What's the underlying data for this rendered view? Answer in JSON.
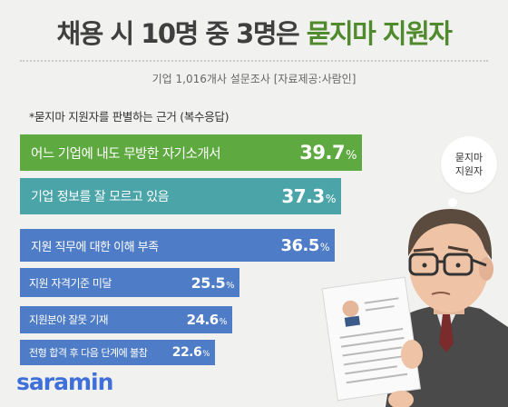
{
  "header": {
    "title_prefix": "채용 시 10명 중 3명은",
    "title_highlight": "묻지마 지원자",
    "subtitle": "기업 1,016개사 설문조사  [자료제공:사람인]"
  },
  "note": "*묻지마 지원자를 판별하는 근거 (복수응답)",
  "bubble_text": [
    "묻지마",
    "지원자"
  ],
  "brand": "saramin",
  "colors": {
    "green": "#5fa941",
    "teal": "#4aa4a8",
    "blue": "#4e7cc6",
    "title_highlight": "#4f8a2c",
    "logo": "#3f6fd8"
  },
  "chart_data": {
    "type": "bar",
    "orientation": "horizontal",
    "unit": "%",
    "categories": [
      "어느 기업에 내도 무방한 자기소개서",
      "기업 정보를 잘 모르고 있음",
      "지원 직무에 대한 이해 부족",
      "지원 자격기준 미달",
      "지원분야 잘못 기재",
      "전형 합격 후 다음 단계에 불참"
    ],
    "values": [
      39.7,
      37.3,
      36.5,
      25.5,
      24.6,
      22.6
    ],
    "title": "*묻지마 지원자를 판별하는 근거 (복수응답)"
  }
}
